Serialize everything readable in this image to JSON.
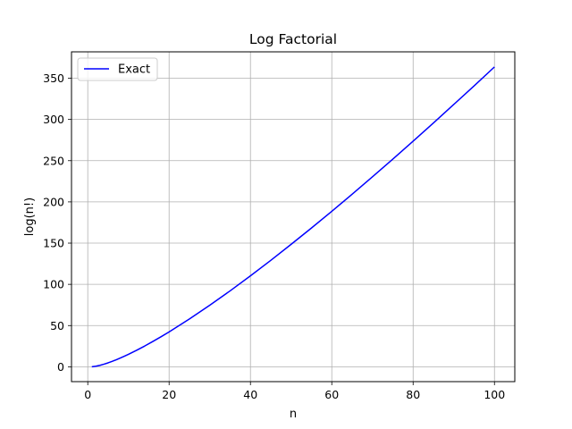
{
  "chart_data": {
    "type": "line",
    "title": "Log Factorial",
    "xlabel": "n",
    "ylabel": "log(n!)",
    "xlim": [
      -4,
      105
    ],
    "ylim": [
      -18,
      382
    ],
    "xticks": [
      0,
      20,
      40,
      60,
      80,
      100
    ],
    "yticks": [
      0,
      50,
      100,
      150,
      200,
      250,
      300,
      350
    ],
    "grid": true,
    "legend_position": "upper-left",
    "series": [
      {
        "name": "Exact",
        "color": "#0000ff",
        "x": [
          1,
          2,
          3,
          4,
          5,
          6,
          7,
          8,
          9,
          10,
          12,
          14,
          16,
          18,
          20,
          25,
          30,
          35,
          40,
          45,
          50,
          55,
          60,
          65,
          70,
          75,
          80,
          85,
          90,
          95,
          100
        ],
        "y": [
          0,
          0.69,
          1.79,
          3.18,
          4.79,
          6.58,
          8.53,
          10.6,
          12.8,
          15.1,
          20.0,
          25.2,
          30.7,
          36.4,
          42.3,
          58.0,
          74.7,
          92.1,
          110.3,
          129.1,
          148.5,
          168.3,
          188.6,
          209.3,
          230.4,
          251.9,
          273.7,
          295.8,
          318.2,
          340.8,
          363.7
        ]
      }
    ]
  }
}
